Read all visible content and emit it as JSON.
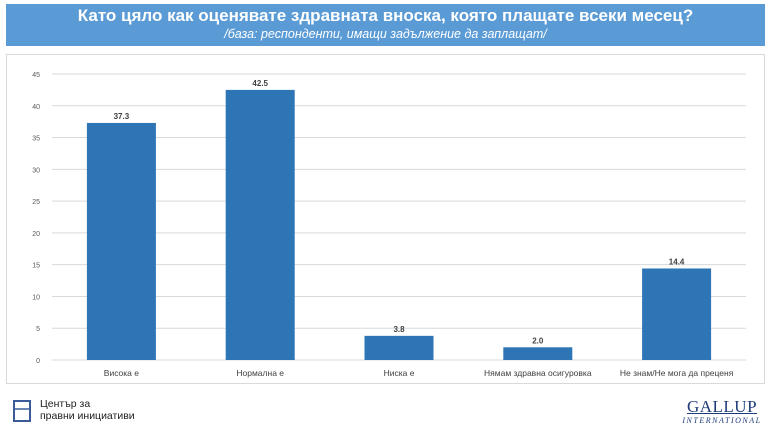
{
  "header": {
    "title": "Като цяло как оценявате здравната вноска, която плащате всеки месец?",
    "subtitle": "/база: респонденти, имащи задължение да заплащат/"
  },
  "chart_data": {
    "type": "bar",
    "categories": [
      "Висока е",
      "Нормална е",
      "Ниска е",
      "Нямам здравна осигуровка",
      "Не знам/Не мога да преценя"
    ],
    "values": [
      37.3,
      42.5,
      3.8,
      2.0,
      14.4
    ],
    "data_labels": [
      "37.3",
      "42.5",
      "3.8",
      "2.0",
      "14.4"
    ],
    "ylim": [
      0,
      45
    ],
    "yticks": [
      0,
      5,
      10,
      15,
      20,
      25,
      30,
      35,
      40,
      45
    ],
    "grid": true,
    "bar_color": "#2e75b6",
    "legend": "none"
  },
  "footer": {
    "logo_line1": "Център за",
    "logo_line2": "правни инициативи",
    "gallup_line1": "GALLUP",
    "gallup_line2": "INTERNATIONAL"
  },
  "colors": {
    "header_bg": "#5b9bd5",
    "grid": "#d9d9d9",
    "axis_text": "#595959"
  }
}
